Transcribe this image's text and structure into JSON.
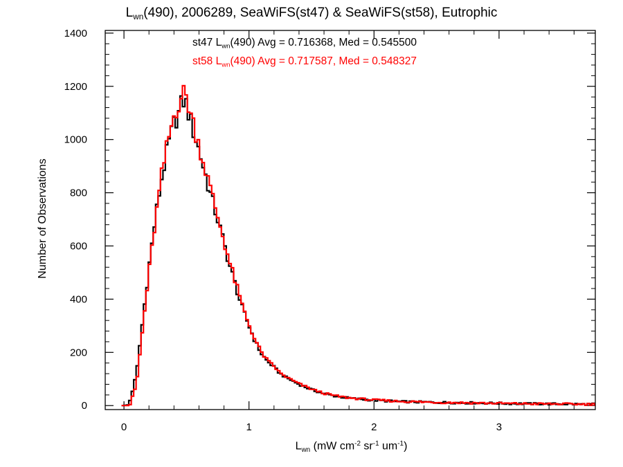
{
  "chart_data": {
    "type": "histogram",
    "title": {
      "main": "L",
      "sub": "wn",
      "rest": "(490), 2006289, SeaWiFS(st47) & SeaWiFS(st58), Eutrophic"
    },
    "xlabel": {
      "main": "L",
      "sub": "wn",
      "rest": " (mW cm",
      "sup1": "-2",
      "rest2": " sr",
      "sup2": "-1",
      "rest3": " um",
      "sup3": "-1",
      "rest4": ")"
    },
    "ylabel": "Number of Observations",
    "xlim": [
      -0.15,
      3.77
    ],
    "ylim": [
      -15,
      1410
    ],
    "xticks": [
      0,
      1,
      2,
      3
    ],
    "yticks": [
      0,
      200,
      400,
      600,
      800,
      1000,
      1200,
      1400
    ],
    "annotations": [
      {
        "prefix": "st47 L",
        "sub": "wn",
        "suffix": "(490) Avg = 0.716368, Med = 0.545500",
        "color": "#000000"
      },
      {
        "prefix": "st58 L",
        "sub": "wn",
        "suffix": "(490) Avg = 0.717587, Med = 0.548327",
        "color": "#ff0000"
      }
    ],
    "series": [
      {
        "name": "st47",
        "color": "#000000",
        "points": [
          [
            0.0,
            0
          ],
          [
            0.05,
            20
          ],
          [
            0.1,
            120
          ],
          [
            0.15,
            320
          ],
          [
            0.2,
            520
          ],
          [
            0.25,
            700
          ],
          [
            0.3,
            850
          ],
          [
            0.35,
            970
          ],
          [
            0.4,
            1060
          ],
          [
            0.44,
            1100
          ],
          [
            0.47,
            1150
          ],
          [
            0.5,
            1130
          ],
          [
            0.55,
            1040
          ],
          [
            0.6,
            960
          ],
          [
            0.65,
            870
          ],
          [
            0.7,
            780
          ],
          [
            0.75,
            700
          ],
          [
            0.8,
            610
          ],
          [
            0.85,
            520
          ],
          [
            0.9,
            440
          ],
          [
            0.95,
            360
          ],
          [
            1.0,
            300
          ],
          [
            1.05,
            240
          ],
          [
            1.1,
            195
          ],
          [
            1.15,
            165
          ],
          [
            1.2,
            145
          ],
          [
            1.25,
            120
          ],
          [
            1.3,
            105
          ],
          [
            1.4,
            80
          ],
          [
            1.5,
            60
          ],
          [
            1.6,
            45
          ],
          [
            1.7,
            35
          ],
          [
            1.8,
            28
          ],
          [
            2.0,
            20
          ],
          [
            2.2,
            15
          ],
          [
            2.5,
            12
          ],
          [
            2.8,
            10
          ],
          [
            3.2,
            7
          ],
          [
            3.77,
            5
          ]
        ]
      },
      {
        "name": "st58",
        "color": "#ff0000",
        "points": [
          [
            0.0,
            0
          ],
          [
            0.05,
            5
          ],
          [
            0.1,
            80
          ],
          [
            0.15,
            290
          ],
          [
            0.2,
            500
          ],
          [
            0.25,
            690
          ],
          [
            0.3,
            860
          ],
          [
            0.35,
            990
          ],
          [
            0.4,
            1090
          ],
          [
            0.44,
            1140
          ],
          [
            0.47,
            1175
          ],
          [
            0.5,
            1160
          ],
          [
            0.55,
            1070
          ],
          [
            0.6,
            980
          ],
          [
            0.65,
            890
          ],
          [
            0.7,
            800
          ],
          [
            0.75,
            710
          ],
          [
            0.8,
            620
          ],
          [
            0.85,
            530
          ],
          [
            0.9,
            450
          ],
          [
            0.95,
            370
          ],
          [
            1.0,
            305
          ],
          [
            1.05,
            245
          ],
          [
            1.1,
            200
          ],
          [
            1.15,
            168
          ],
          [
            1.2,
            148
          ],
          [
            1.25,
            122
          ],
          [
            1.3,
            107
          ],
          [
            1.4,
            82
          ],
          [
            1.5,
            62
          ],
          [
            1.6,
            46
          ],
          [
            1.7,
            36
          ],
          [
            1.8,
            29
          ],
          [
            2.0,
            21
          ],
          [
            2.2,
            16
          ],
          [
            2.5,
            12
          ],
          [
            2.8,
            10
          ],
          [
            3.2,
            7
          ],
          [
            3.77,
            5
          ]
        ]
      }
    ]
  }
}
